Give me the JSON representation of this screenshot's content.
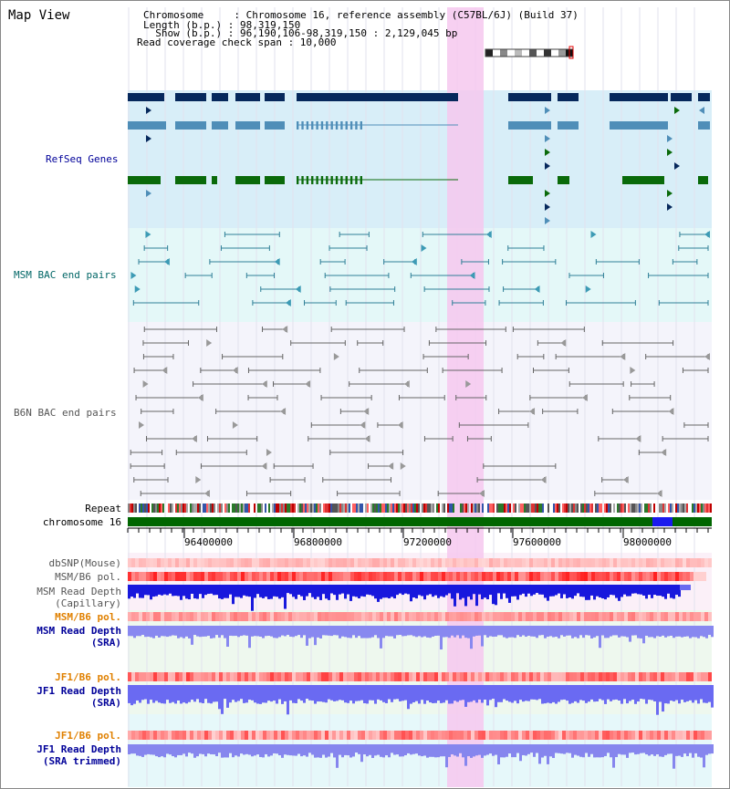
{
  "view": {
    "title": "Map View",
    "info_lines": [
      "Chromosome     : Chromosome 16, reference assembly (C57BL/6J) (Build 37)",
      "Length (b.p.) : 98,319,150",
      "  Show (b.p.) : 96,190,106-98,319,150 : 2,129,045 bp",
      "Read coverage check span : 10,000"
    ]
  },
  "tracks": {
    "refseq": "RefSeq Genes",
    "msm_bac": "MSM BAC end pairs",
    "b6n_bac": "B6N BAC end pairs",
    "repeat": "Repeat",
    "chromosome": "chromosome 16",
    "dbsnp": "dbSNP(Mouse)",
    "msm_pol": "MSM/B6 pol.",
    "msm_depth_cap_1": "MSM Read Depth",
    "msm_depth_cap_2": "(Capillary)",
    "msm_pol_sra": "MSM/B6 pol.",
    "msm_depth_sra_1": "MSM Read Depth",
    "msm_depth_sra_2": "(SRA)",
    "jf1_pol": "JF1/B6 pol.",
    "jf1_depth_1": "JF1 Read Depth",
    "jf1_depth_2": "(SRA)",
    "jf1_pol_trim": "JF1/B6 pol.",
    "jf1_trim_1": "JF1 Read Depth",
    "jf1_trim_2": "(SRA trimmed)"
  },
  "axis": {
    "ticks": [
      "96400000",
      "96800000",
      "97200000",
      "97600000",
      "98000000"
    ]
  },
  "colors": {
    "label_black": "#000000",
    "label_blue": "#000099",
    "label_teal": "#006666",
    "label_gray": "#555555",
    "label_orange": "#e08000",
    "highlight": "#f6c8ee",
    "refseq_bg": "#d8eef8",
    "msm_bg": "#e4f8f8",
    "gene_navy": "#06285c",
    "gene_steel": "#4f8eb8",
    "gene_green": "#0a6a0a",
    "chromosome_bar": "#006600"
  }
}
